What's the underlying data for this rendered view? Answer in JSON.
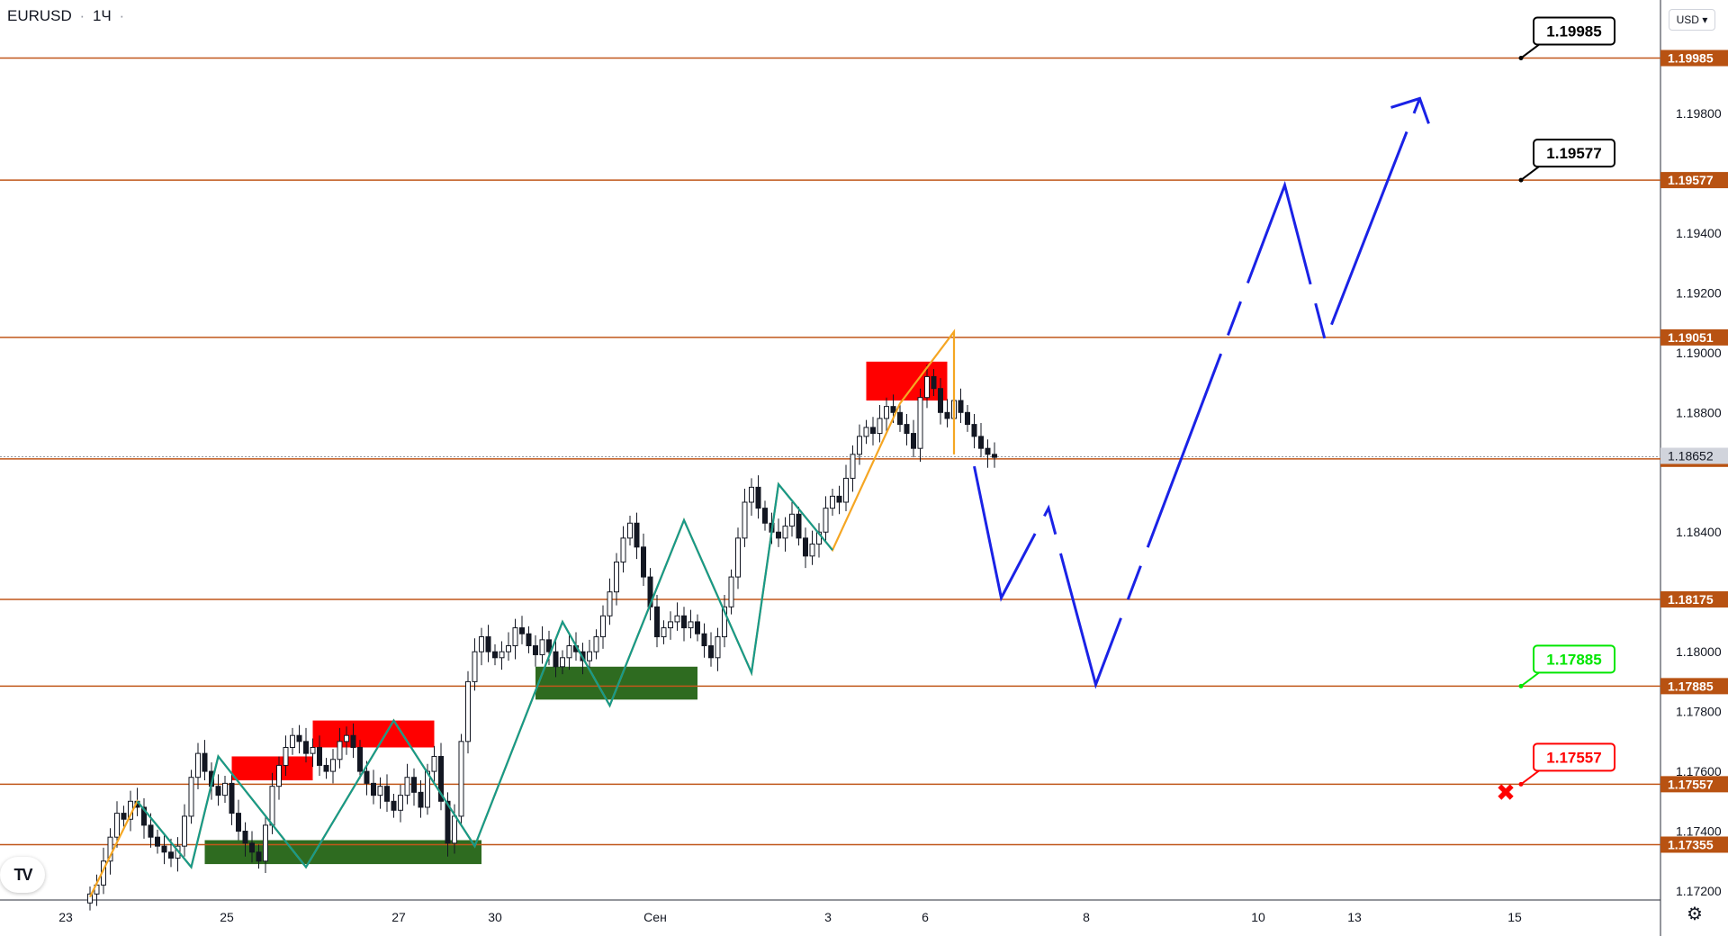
{
  "header": {
    "symbol": "EURUSD",
    "timeframe": "1Ч",
    "currency_button": "USD"
  },
  "logo_text": "TV",
  "chart_data": {
    "type": "candlestick",
    "title": "EURUSD · 1Ч",
    "ylim": [
      1.1717,
      1.2008
    ],
    "x_tick_labels": [
      "23",
      "25",
      "27",
      "30",
      "Сен",
      "3",
      "6",
      "8",
      "10",
      "13",
      "15"
    ],
    "y_tick_labels": [
      "1.17200",
      "1.17400",
      "1.17600",
      "1.17800",
      "1.18000",
      "1.18400",
      "1.18800",
      "1.19000",
      "1.19200",
      "1.19400",
      "1.19800"
    ],
    "horizontal_levels": [
      {
        "value": 1.19985,
        "label": "1.19985"
      },
      {
        "value": 1.19577,
        "label": "1.19577"
      },
      {
        "value": 1.19051,
        "label": "1.19051"
      },
      {
        "value": 1.18645,
        "label": "1.18645"
      },
      {
        "value": 1.18175,
        "label": "1.18175"
      },
      {
        "value": 1.17885,
        "label": "1.17885"
      },
      {
        "value": 1.17557,
        "label": "1.17557"
      },
      {
        "value": 1.17355,
        "label": "1.17355"
      }
    ],
    "current_price": {
      "value": 1.18652,
      "label": "1.18652"
    },
    "callouts": [
      {
        "label": "1.19985",
        "color": "#000000"
      },
      {
        "label": "1.19577",
        "color": "#000000"
      },
      {
        "label": "1.17885",
        "color": "#00e600"
      },
      {
        "label": "1.17557",
        "color": "#ff0000"
      }
    ],
    "close_path": [
      1.1719,
      1.1722,
      1.173,
      1.1738,
      1.1746,
      1.1744,
      1.175,
      1.1748,
      1.1742,
      1.1738,
      1.1735,
      1.1733,
      1.1731,
      1.1735,
      1.1745,
      1.1758,
      1.1766,
      1.176,
      1.1755,
      1.1752,
      1.1756,
      1.1746,
      1.174,
      1.1736,
      1.1733,
      1.173,
      1.1742,
      1.1755,
      1.1762,
      1.1768,
      1.1772,
      1.177,
      1.1766,
      1.1768,
      1.1762,
      1.176,
      1.1764,
      1.177,
      1.1772,
      1.1768,
      1.176,
      1.1756,
      1.1752,
      1.1755,
      1.175,
      1.1747,
      1.1752,
      1.1758,
      1.1753,
      1.1748,
      1.176,
      1.1765,
      1.175,
      1.1736,
      1.1745,
      1.177,
      1.179,
      1.18,
      1.1805,
      1.18,
      1.1798,
      1.18,
      1.1802,
      1.1808,
      1.1806,
      1.1802,
      1.1799,
      1.1804,
      1.18,
      1.1795,
      1.1798,
      1.1802,
      1.18,
      1.1797,
      1.18,
      1.1805,
      1.1812,
      1.182,
      1.183,
      1.1838,
      1.1843,
      1.1835,
      1.1825,
      1.1815,
      1.1805,
      1.1808,
      1.181,
      1.1812,
      1.1808,
      1.181,
      1.1806,
      1.1802,
      1.1798,
      1.1805,
      1.1815,
      1.1825,
      1.1838,
      1.185,
      1.1855,
      1.1848,
      1.1843,
      1.184,
      1.1838,
      1.1842,
      1.1846,
      1.1838,
      1.1832,
      1.1836,
      1.184,
      1.1848,
      1.1852,
      1.185,
      1.1858,
      1.1866,
      1.1872,
      1.1875,
      1.1873,
      1.1878,
      1.1882,
      1.188,
      1.1876,
      1.1873,
      1.1868,
      1.1885,
      1.1892,
      1.1888,
      1.188,
      1.1878,
      1.1884,
      1.188,
      1.1876,
      1.1872,
      1.1868,
      1.1866,
      1.1865
    ],
    "series": [
      {
        "name": "orange_swings",
        "color": "#f5a623",
        "points": [
          [
            0,
            1.1718
          ],
          [
            7,
            1.175
          ],
          [
            15,
            1.1728
          ],
          [
            19,
            1.1765
          ],
          [
            32,
            1.1728
          ],
          [
            45,
            1.1777
          ],
          [
            57,
            1.1735
          ],
          [
            70,
            1.181
          ],
          [
            77,
            1.1782
          ],
          [
            88,
            1.1844
          ],
          [
            98,
            1.1793
          ],
          [
            102,
            1.1856
          ],
          [
            110,
            1.1834
          ],
          [
            120,
            1.1883
          ],
          [
            128,
            1.1907
          ],
          [
            128,
            1.1866
          ]
        ]
      },
      {
        "name": "teal_swings",
        "color": "#17998a",
        "points": [
          [
            7,
            1.175
          ],
          [
            15,
            1.1728
          ],
          [
            19,
            1.1765
          ],
          [
            32,
            1.1728
          ],
          [
            45,
            1.1777
          ],
          [
            57,
            1.1735
          ],
          [
            70,
            1.181
          ],
          [
            77,
            1.1782
          ],
          [
            88,
            1.1844
          ],
          [
            98,
            1.1793
          ],
          [
            102,
            1.1856
          ],
          [
            110,
            1.1834
          ]
        ]
      },
      {
        "name": "forecast_path",
        "color": "#1a22e6",
        "points": [
          [
            131,
            1.1862
          ],
          [
            135,
            1.1818
          ],
          [
            142,
            1.1848
          ],
          [
            149,
            1.1789
          ],
          [
            177,
            1.1956
          ],
          [
            183,
            1.1904
          ],
          [
            197,
            1.1985
          ]
        ]
      }
    ],
    "zones": [
      {
        "kind": "supply",
        "color": "#ff0000",
        "x0": 21,
        "x1": 33,
        "y0": 1.1757,
        "y1": 1.1765
      },
      {
        "kind": "supply",
        "color": "#ff0000",
        "x0": 33,
        "x1": 51,
        "y0": 1.1768,
        "y1": 1.1777
      },
      {
        "kind": "supply",
        "color": "#ff0000",
        "x0": 115,
        "x1": 127,
        "y0": 1.1884,
        "y1": 1.1897
      },
      {
        "kind": "demand",
        "color": "#2e6b20",
        "x0": 17,
        "x1": 58,
        "y0": 1.1729,
        "y1": 1.1737
      },
      {
        "kind": "demand",
        "color": "#2e6b20",
        "x0": 66,
        "x1": 90,
        "y0": 1.1784,
        "y1": 1.1795
      }
    ],
    "markers": [
      {
        "kind": "cross",
        "color": "#ff0000",
        "x": 195,
        "y": 1.1753
      }
    ]
  },
  "colors": {
    "level_line": "#c0571a",
    "level_tag_bg": "#b85212",
    "current_tag_bg": "#d1d4dc"
  }
}
